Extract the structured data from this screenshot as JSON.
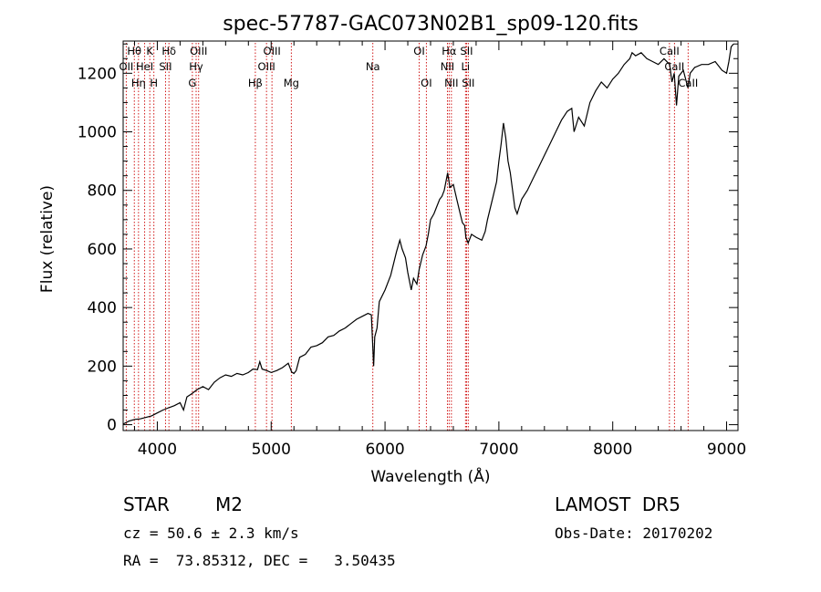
{
  "chart_data": {
    "type": "line",
    "title": "spec-57787-GAC073N02B1_sp09-120.fits",
    "xlabel": "Wavelength (Å)",
    "ylabel": "Flux (relative)",
    "xlim": [
      3700,
      9100
    ],
    "ylim": [
      -20,
      1310
    ],
    "xticks": [
      4000,
      5000,
      6000,
      7000,
      8000,
      9000
    ],
    "yticks": [
      0,
      200,
      400,
      600,
      800,
      1000,
      1200
    ],
    "series": [
      {
        "points": [
          [
            3700,
            2
          ],
          [
            3750,
            12
          ],
          [
            3800,
            18
          ],
          [
            3850,
            20
          ],
          [
            3900,
            25
          ],
          [
            3950,
            30
          ],
          [
            4000,
            40
          ],
          [
            4050,
            50
          ],
          [
            4100,
            58
          ],
          [
            4150,
            65
          ],
          [
            4200,
            75
          ],
          [
            4230,
            50
          ],
          [
            4260,
            95
          ],
          [
            4300,
            105
          ],
          [
            4350,
            120
          ],
          [
            4400,
            130
          ],
          [
            4450,
            120
          ],
          [
            4500,
            145
          ],
          [
            4550,
            160
          ],
          [
            4600,
            170
          ],
          [
            4650,
            165
          ],
          [
            4700,
            175
          ],
          [
            4750,
            170
          ],
          [
            4800,
            178
          ],
          [
            4840,
            190
          ],
          [
            4880,
            188
          ],
          [
            4900,
            215
          ],
          [
            4920,
            190
          ],
          [
            4960,
            185
          ],
          [
            5000,
            178
          ],
          [
            5050,
            185
          ],
          [
            5100,
            195
          ],
          [
            5150,
            210
          ],
          [
            5180,
            180
          ],
          [
            5200,
            175
          ],
          [
            5220,
            185
          ],
          [
            5250,
            230
          ],
          [
            5300,
            240
          ],
          [
            5350,
            265
          ],
          [
            5400,
            270
          ],
          [
            5450,
            280
          ],
          [
            5500,
            300
          ],
          [
            5550,
            305
          ],
          [
            5600,
            320
          ],
          [
            5650,
            330
          ],
          [
            5700,
            345
          ],
          [
            5750,
            360
          ],
          [
            5800,
            370
          ],
          [
            5850,
            380
          ],
          [
            5880,
            375
          ],
          [
            5900,
            200
          ],
          [
            5910,
            300
          ],
          [
            5930,
            330
          ],
          [
            5950,
            420
          ],
          [
            6000,
            460
          ],
          [
            6050,
            510
          ],
          [
            6100,
            590
          ],
          [
            6130,
            630
          ],
          [
            6150,
            600
          ],
          [
            6180,
            570
          ],
          [
            6200,
            520
          ],
          [
            6230,
            460
          ],
          [
            6250,
            500
          ],
          [
            6280,
            480
          ],
          [
            6300,
            530
          ],
          [
            6330,
            580
          ],
          [
            6360,
            610
          ],
          [
            6380,
            650
          ],
          [
            6400,
            700
          ],
          [
            6430,
            720
          ],
          [
            6450,
            740
          ],
          [
            6480,
            770
          ],
          [
            6500,
            780
          ],
          [
            6520,
            800
          ],
          [
            6550,
            860
          ],
          [
            6570,
            810
          ],
          [
            6600,
            820
          ],
          [
            6630,
            770
          ],
          [
            6660,
            720
          ],
          [
            6680,
            690
          ],
          [
            6700,
            680
          ],
          [
            6710,
            640
          ],
          [
            6730,
            620
          ],
          [
            6760,
            650
          ],
          [
            6800,
            640
          ],
          [
            6850,
            630
          ],
          [
            6880,
            660
          ],
          [
            6900,
            700
          ],
          [
            6950,
            780
          ],
          [
            6980,
            830
          ],
          [
            7000,
            900
          ],
          [
            7020,
            960
          ],
          [
            7040,
            1030
          ],
          [
            7060,
            980
          ],
          [
            7080,
            900
          ],
          [
            7100,
            860
          ],
          [
            7120,
            800
          ],
          [
            7140,
            740
          ],
          [
            7160,
            720
          ],
          [
            7200,
            770
          ],
          [
            7250,
            800
          ],
          [
            7300,
            840
          ],
          [
            7350,
            880
          ],
          [
            7400,
            920
          ],
          [
            7450,
            960
          ],
          [
            7500,
            1000
          ],
          [
            7550,
            1040
          ],
          [
            7600,
            1070
          ],
          [
            7640,
            1080
          ],
          [
            7660,
            1000
          ],
          [
            7700,
            1050
          ],
          [
            7750,
            1020
          ],
          [
            7800,
            1100
          ],
          [
            7850,
            1140
          ],
          [
            7900,
            1170
          ],
          [
            7950,
            1150
          ],
          [
            8000,
            1180
          ],
          [
            8050,
            1200
          ],
          [
            8100,
            1230
          ],
          [
            8150,
            1250
          ],
          [
            8170,
            1270
          ],
          [
            8200,
            1260
          ],
          [
            8250,
            1270
          ],
          [
            8300,
            1250
          ],
          [
            8350,
            1240
          ],
          [
            8400,
            1230
          ],
          [
            8450,
            1250
          ],
          [
            8500,
            1230
          ],
          [
            8520,
            1170
          ],
          [
            8540,
            1200
          ],
          [
            8560,
            1090
          ],
          [
            8580,
            1190
          ],
          [
            8620,
            1210
          ],
          [
            8660,
            1150
          ],
          [
            8680,
            1200
          ],
          [
            8720,
            1220
          ],
          [
            8780,
            1230
          ],
          [
            8840,
            1230
          ],
          [
            8900,
            1240
          ],
          [
            8960,
            1210
          ],
          [
            9000,
            1200
          ],
          [
            9020,
            1240
          ],
          [
            9040,
            1290
          ],
          [
            9060,
            1300
          ]
        ]
      }
    ],
    "lines": [
      {
        "w": 3727,
        "label": "OII",
        "row": 1
      },
      {
        "w": 3798,
        "label": "Hθ",
        "row": 0
      },
      {
        "w": 3835,
        "label": "Hη",
        "row": 2
      },
      {
        "w": 3889,
        "label": "HeI",
        "row": 1
      },
      {
        "w": 3934,
        "label": "K",
        "row": 0
      },
      {
        "w": 3970,
        "label": "H",
        "row": 2
      },
      {
        "w": 4072,
        "label": "SII",
        "row": 1
      },
      {
        "w": 4102,
        "label": "Hδ",
        "row": 0
      },
      {
        "w": 4308,
        "label": "G",
        "row": 2
      },
      {
        "w": 4341,
        "label": "Hγ",
        "row": 1
      },
      {
        "w": 4363,
        "label": "OIII",
        "row": 0
      },
      {
        "w": 4861,
        "label": "Hβ",
        "row": 2
      },
      {
        "w": 4959,
        "label": "OIII",
        "row": 1
      },
      {
        "w": 5007,
        "label": "OIII",
        "row": 0
      },
      {
        "w": 5177,
        "label": "Mg",
        "row": 2
      },
      {
        "w": 5893,
        "label": "Na",
        "row": 1
      },
      {
        "w": 6300,
        "label": "OI",
        "row": 0
      },
      {
        "w": 6363,
        "label": "OI",
        "row": 2
      },
      {
        "w": 6548,
        "label": "NII",
        "row": 1
      },
      {
        "w": 6563,
        "label": "Hα",
        "row": 0
      },
      {
        "w": 6583,
        "label": "NII",
        "row": 2
      },
      {
        "w": 6707,
        "label": "Li",
        "row": 1
      },
      {
        "w": 6716,
        "label": "SII",
        "row": 0
      },
      {
        "w": 6731,
        "label": "SII",
        "row": 2
      },
      {
        "w": 8498,
        "label": "CaII",
        "row": 0
      },
      {
        "w": 8542,
        "label": "CaII",
        "row": 1
      },
      {
        "w": 8662,
        "label": "CaII",
        "row": 2
      }
    ],
    "grid": false
  },
  "info": {
    "class": "STAR",
    "subclass": "M2",
    "survey": "LAMOST  DR5",
    "cz": "cz = 50.6 ± 2.3 km/s",
    "obs_date": "Obs-Date: 20170202",
    "radec": "RA =  73.85312, DEC =   3.50435"
  },
  "colors": {
    "line": "#000000",
    "marker": "#cc0000"
  }
}
